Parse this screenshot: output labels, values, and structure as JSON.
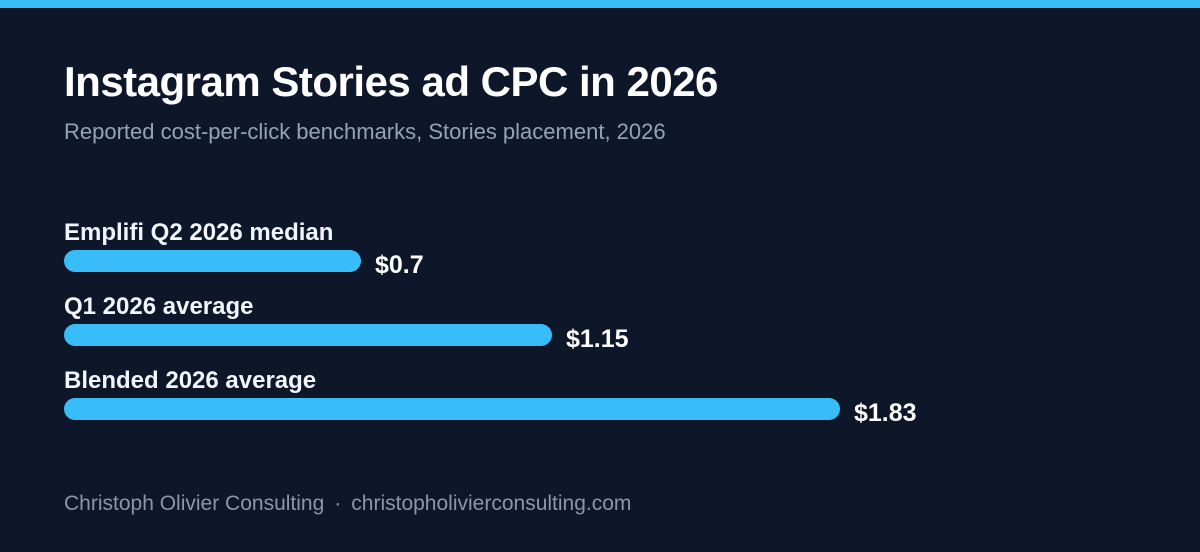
{
  "colors": {
    "background": "#0e172a",
    "accent": "#38bdf8",
    "title": "#ffffff",
    "subtitle": "#94a3b8",
    "footer": "#8b97a8"
  },
  "footer": {
    "brand": "Christoph Olivier Consulting",
    "separator": "·",
    "website": "christopholivierconsulting.com"
  },
  "chart_data": {
    "type": "bar",
    "orientation": "horizontal",
    "title": "Instagram Stories ad CPC in 2026",
    "subtitle": "Reported cost-per-click benchmarks, Stories placement, 2026",
    "categories": [
      "Emplifi Q2 2026 median",
      "Q1 2026 average",
      "Blended 2026 average"
    ],
    "values": [
      0.7,
      1.15,
      1.83
    ],
    "value_labels": [
      "$0.7",
      "$1.15",
      "$1.83"
    ],
    "unit": "$",
    "xlim": [
      0,
      1.83
    ],
    "grid": false,
    "legend": "none"
  }
}
